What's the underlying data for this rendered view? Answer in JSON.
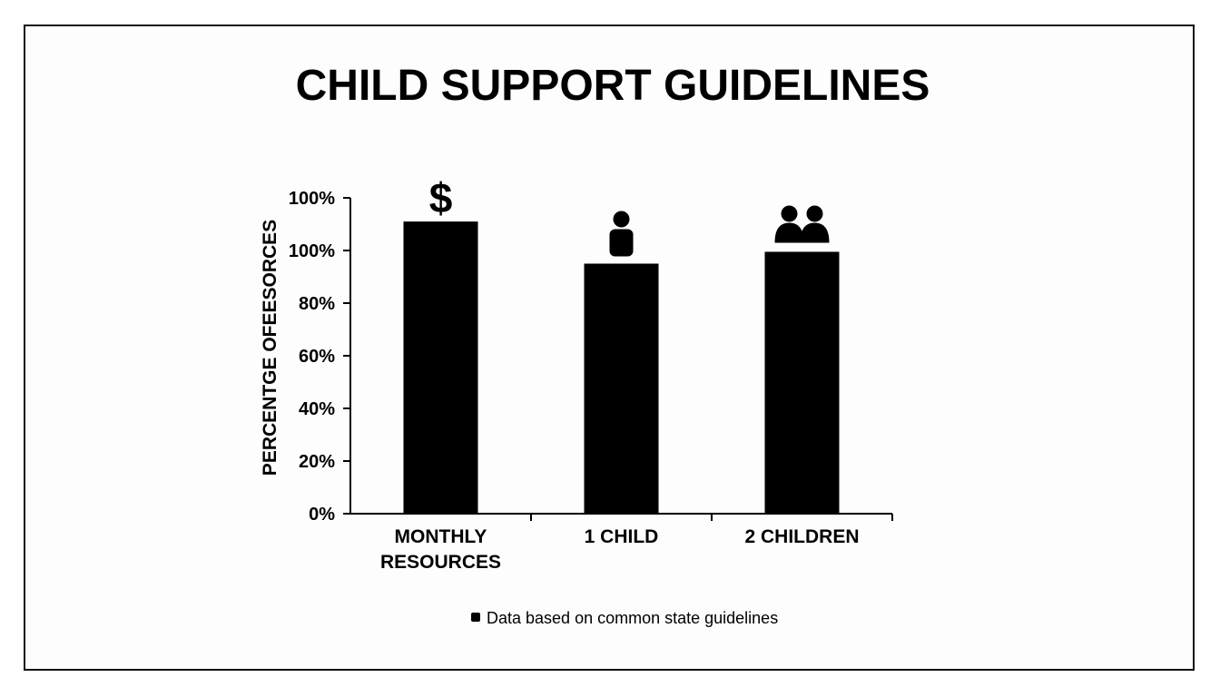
{
  "chart_data": {
    "type": "bar",
    "title": "CHILD SUPPORT GUIDELINES",
    "ylabel": "PERCENTGE OFEESORCES",
    "xlabel": "",
    "y_tick_labels": [
      "0%",
      "20%",
      "40%",
      "60%",
      "80%",
      "100%",
      "100%"
    ],
    "ylim": [
      0,
      120
    ],
    "categories": [
      {
        "label_lines": [
          "MONTHLY",
          "RESOURCES"
        ],
        "icon": "dollar-icon"
      },
      {
        "label_lines": [
          "1 CHILD"
        ],
        "icon": "person-icon"
      },
      {
        "label_lines": [
          "2 CHILDREN"
        ],
        "icon": "two-people-icon"
      }
    ],
    "values": [
      111,
      95,
      99.5
    ],
    "bar_color": "#000000",
    "grid": false,
    "legend": null
  },
  "icons": {
    "dollar": "$"
  },
  "note": {
    "text": "Data based on common state guidelines",
    "marker_icon": "square-bullet-icon"
  }
}
